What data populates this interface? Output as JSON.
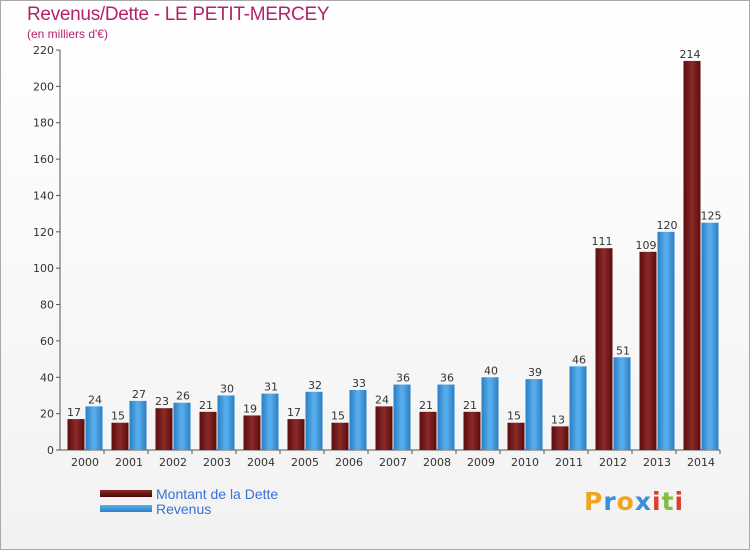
{
  "header": {
    "title": "Revenus/Dette - LE PETIT-MERCEY",
    "subtitle": "(en milliers d'€)"
  },
  "colors": {
    "debt": "#7a1c1c",
    "revenue": "#3c9ce0",
    "title": "#b4226a"
  },
  "legend": {
    "debt_label": "Montant de la Dette",
    "revenue_label": "Revenus"
  },
  "logo": {
    "text": "Proxiti",
    "letters": [
      "P",
      "r",
      "o",
      "x",
      "i",
      "t",
      "i"
    ],
    "letter_colors": [
      "#f0a51e",
      "#3b8fd6",
      "#f0a51e",
      "#3b8fd6",
      "#e33b2e",
      "#7fbf3a",
      "#e33b2e"
    ]
  },
  "chart_data": {
    "type": "bar",
    "title": "Revenus/Dette - LE PETIT-MERCEY",
    "ylabel": "(en milliers d'€)",
    "xlabel": "",
    "ylim": [
      0,
      220
    ],
    "yticks": [
      0,
      20,
      40,
      60,
      80,
      100,
      120,
      140,
      160,
      180,
      200,
      220
    ],
    "categories": [
      "2000",
      "2001",
      "2002",
      "2003",
      "2004",
      "2005",
      "2006",
      "2007",
      "2008",
      "2009",
      "2010",
      "2011",
      "2012",
      "2013",
      "2014"
    ],
    "series": [
      {
        "name": "Montant de la Dette",
        "values": [
          17,
          15,
          23,
          21,
          19,
          17,
          15,
          24,
          21,
          21,
          15,
          13,
          111,
          109,
          214
        ]
      },
      {
        "name": "Revenus",
        "values": [
          24,
          27,
          26,
          30,
          31,
          32,
          33,
          36,
          36,
          40,
          39,
          46,
          51,
          120,
          125
        ]
      }
    ],
    "grid": false,
    "legend_position": "bottom-left"
  }
}
